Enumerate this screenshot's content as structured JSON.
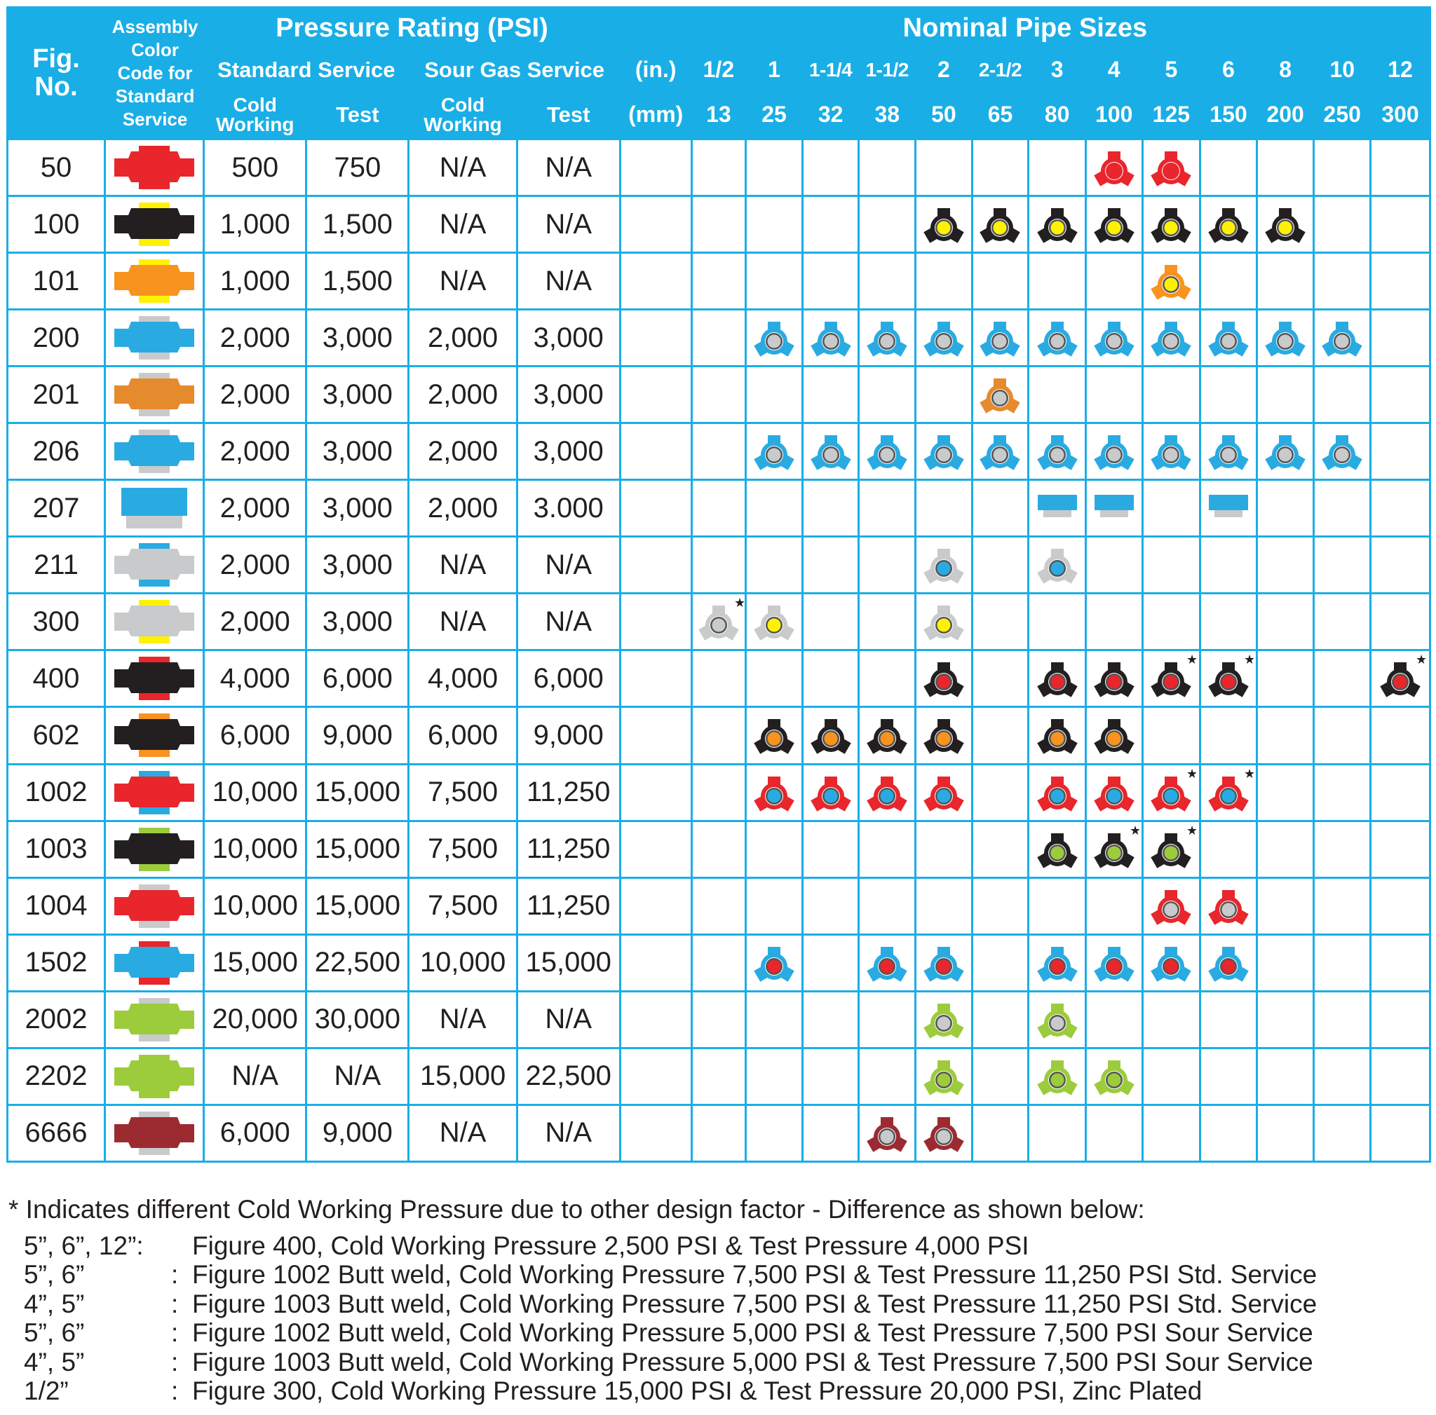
{
  "header": {
    "fig_no": "Fig. No.",
    "assembly": "Assembly Color Code for Standard Service",
    "pressure_rating": "Pressure Rating (PSI)",
    "standard_service": "Standard Service",
    "sour_gas_service": "Sour Gas Service",
    "cold_working": "Cold Working",
    "test": "Test",
    "nominal_pipe_sizes": "Nominal Pipe Sizes",
    "in_label": "(in.)",
    "mm_label": "(mm)",
    "sizes_in": [
      "1/2",
      "1",
      "1-1/4",
      "1-1/2",
      "2",
      "2-1/2",
      "3",
      "4",
      "5",
      "6",
      "8",
      "10",
      "12"
    ],
    "sizes_mm": [
      "13",
      "25",
      "32",
      "38",
      "50",
      "65",
      "80",
      "100",
      "125",
      "150",
      "200",
      "250",
      "300"
    ]
  },
  "colors": {
    "frame": "#1aaee6",
    "red": "#e8262c",
    "yellow": "#fff200",
    "black": "#231f20",
    "orange": "#f7931e",
    "blue": "#29abe2",
    "gray": "#c9cacb",
    "green": "#9ccc3c",
    "maroon": "#9c2b31",
    "amber": "#e68a2e"
  },
  "rows": [
    {
      "fig": "50",
      "std_cold": "500",
      "std_test": "750",
      "sour_cold": "N/A",
      "sour_test": "N/A",
      "swatch": {
        "main": "#e8262c",
        "top": "#e8262c",
        "bot": "#e8262c",
        "shape": "wing"
      },
      "icons": [
        {
          "col": 7,
          "arm": "#e8262c",
          "dot": "#e8262c",
          "hub": "#e8262c",
          "star": false
        },
        {
          "col": 8,
          "arm": "#e8262c",
          "dot": "#e8262c",
          "hub": "#e8262c",
          "star": false
        }
      ]
    },
    {
      "fig": "100",
      "std_cold": "1,000",
      "std_test": "1,500",
      "sour_cold": "N/A",
      "sour_test": "N/A",
      "swatch": {
        "main": "#231f20",
        "top": "#fff200",
        "bot": "#fff200",
        "shape": "wing"
      },
      "icons": [
        {
          "col": 4,
          "arm": "#231f20",
          "dot": "#fff200",
          "star": false
        },
        {
          "col": 5,
          "arm": "#231f20",
          "dot": "#fff200",
          "star": false
        },
        {
          "col": 6,
          "arm": "#231f20",
          "dot": "#fff200",
          "star": false
        },
        {
          "col": 7,
          "arm": "#231f20",
          "dot": "#fff200",
          "star": false
        },
        {
          "col": 8,
          "arm": "#231f20",
          "dot": "#fff200",
          "star": false
        },
        {
          "col": 9,
          "arm": "#231f20",
          "dot": "#fff200",
          "star": false
        },
        {
          "col": 10,
          "arm": "#231f20",
          "dot": "#fff200",
          "star": false
        }
      ]
    },
    {
      "fig": "101",
      "std_cold": "1,000",
      "std_test": "1,500",
      "sour_cold": "N/A",
      "sour_test": "N/A",
      "swatch": {
        "main": "#f7931e",
        "top": "#fff200",
        "bot": "#fff200",
        "shape": "wing"
      },
      "icons": [
        {
          "col": 8,
          "arm": "#f7931e",
          "dot": "#fff200",
          "star": false
        }
      ]
    },
    {
      "fig": "200",
      "std_cold": "2,000",
      "std_test": "3,000",
      "sour_cold": "2,000",
      "sour_test": "3,000",
      "swatch": {
        "main": "#29abe2",
        "top": "#c9cacb",
        "bot": "#c9cacb",
        "shape": "wing"
      },
      "icons": [
        {
          "col": 1,
          "arm": "#29abe2",
          "dot": "#c9cacb",
          "star": false
        },
        {
          "col": 2,
          "arm": "#29abe2",
          "dot": "#c9cacb",
          "star": false
        },
        {
          "col": 3,
          "arm": "#29abe2",
          "dot": "#c9cacb",
          "star": false
        },
        {
          "col": 4,
          "arm": "#29abe2",
          "dot": "#c9cacb",
          "star": false
        },
        {
          "col": 5,
          "arm": "#29abe2",
          "dot": "#c9cacb",
          "star": false
        },
        {
          "col": 6,
          "arm": "#29abe2",
          "dot": "#c9cacb",
          "star": false
        },
        {
          "col": 7,
          "arm": "#29abe2",
          "dot": "#c9cacb",
          "star": false
        },
        {
          "col": 8,
          "arm": "#29abe2",
          "dot": "#c9cacb",
          "star": false
        },
        {
          "col": 9,
          "arm": "#29abe2",
          "dot": "#c9cacb",
          "star": false
        },
        {
          "col": 10,
          "arm": "#29abe2",
          "dot": "#c9cacb",
          "star": false
        },
        {
          "col": 11,
          "arm": "#29abe2",
          "dot": "#c9cacb",
          "star": false
        }
      ]
    },
    {
      "fig": "201",
      "std_cold": "2,000",
      "std_test": "3,000",
      "sour_cold": "2,000",
      "sour_test": "3,000",
      "swatch": {
        "main": "#e68a2e",
        "top": "#c9cacb",
        "bot": "#c9cacb",
        "shape": "wing"
      },
      "icons": [
        {
          "col": 5,
          "arm": "#e68a2e",
          "dot": "#c9cacb",
          "star": false
        }
      ]
    },
    {
      "fig": "206",
      "std_cold": "2,000",
      "std_test": "3,000",
      "sour_cold": "2,000",
      "sour_test": "3,000",
      "swatch": {
        "main": "#29abe2",
        "top": "#c9cacb",
        "bot": "#c9cacb",
        "shape": "wing"
      },
      "icons": [
        {
          "col": 1,
          "arm": "#29abe2",
          "dot": "#c9cacb",
          "star": false
        },
        {
          "col": 2,
          "arm": "#29abe2",
          "dot": "#c9cacb",
          "star": false
        },
        {
          "col": 3,
          "arm": "#29abe2",
          "dot": "#c9cacb",
          "star": false
        },
        {
          "col": 4,
          "arm": "#29abe2",
          "dot": "#c9cacb",
          "star": false
        },
        {
          "col": 5,
          "arm": "#29abe2",
          "dot": "#c9cacb",
          "star": false
        },
        {
          "col": 6,
          "arm": "#29abe2",
          "dot": "#c9cacb",
          "star": false
        },
        {
          "col": 7,
          "arm": "#29abe2",
          "dot": "#c9cacb",
          "star": false
        },
        {
          "col": 8,
          "arm": "#29abe2",
          "dot": "#c9cacb",
          "star": false
        },
        {
          "col": 9,
          "arm": "#29abe2",
          "dot": "#c9cacb",
          "star": false
        },
        {
          "col": 10,
          "arm": "#29abe2",
          "dot": "#c9cacb",
          "star": false
        },
        {
          "col": 11,
          "arm": "#29abe2",
          "dot": "#c9cacb",
          "star": false
        }
      ]
    },
    {
      "fig": "207",
      "std_cold": "2,000",
      "std_test": "3,000",
      "sour_cold": "2,000",
      "sour_test": "3.000",
      "swatch": {
        "main": "#29abe2",
        "top": "#29abe2",
        "bot": "#c9cacb",
        "shape": "block"
      },
      "icons": [
        {
          "col": 6,
          "kind": "block"
        },
        {
          "col": 7,
          "kind": "block"
        },
        {
          "col": 9,
          "kind": "block"
        }
      ]
    },
    {
      "fig": "211",
      "std_cold": "2,000",
      "std_test": "3,000",
      "sour_cold": "N/A",
      "sour_test": "N/A",
      "swatch": {
        "main": "#c9cacb",
        "top": "#29abe2",
        "bot": "#29abe2",
        "shape": "wing"
      },
      "icons": [
        {
          "col": 4,
          "arm": "#c9cacb",
          "dot": "#29abe2",
          "star": false
        },
        {
          "col": 6,
          "arm": "#c9cacb",
          "dot": "#29abe2",
          "star": false
        }
      ]
    },
    {
      "fig": "300",
      "std_cold": "2,000",
      "std_test": "3,000",
      "sour_cold": "N/A",
      "sour_test": "N/A",
      "swatch": {
        "main": "#c9cacb",
        "top": "#fff200",
        "bot": "#fff200",
        "shape": "wing"
      },
      "icons": [
        {
          "col": 0,
          "arm": "#c9cacb",
          "dot": "#c9cacb",
          "star": true
        },
        {
          "col": 1,
          "arm": "#c9cacb",
          "dot": "#fff200",
          "star": false
        },
        {
          "col": 4,
          "arm": "#c9cacb",
          "dot": "#fff200",
          "star": false
        }
      ]
    },
    {
      "fig": "400",
      "std_cold": "4,000",
      "std_test": "6,000",
      "sour_cold": "4,000",
      "sour_test": "6,000",
      "swatch": {
        "main": "#231f20",
        "top": "#e8262c",
        "bot": "#e8262c",
        "shape": "wing"
      },
      "icons": [
        {
          "col": 4,
          "arm": "#231f20",
          "dot": "#e8262c",
          "star": false
        },
        {
          "col": 6,
          "arm": "#231f20",
          "dot": "#e8262c",
          "star": false
        },
        {
          "col": 7,
          "arm": "#231f20",
          "dot": "#e8262c",
          "star": false
        },
        {
          "col": 8,
          "arm": "#231f20",
          "dot": "#e8262c",
          "star": true
        },
        {
          "col": 9,
          "arm": "#231f20",
          "dot": "#e8262c",
          "star": true
        },
        {
          "col": 12,
          "arm": "#231f20",
          "dot": "#e8262c",
          "star": true
        }
      ]
    },
    {
      "fig": "602",
      "std_cold": "6,000",
      "std_test": "9,000",
      "sour_cold": "6,000",
      "sour_test": "9,000",
      "swatch": {
        "main": "#231f20",
        "top": "#f7931e",
        "bot": "#f7931e",
        "shape": "wing"
      },
      "icons": [
        {
          "col": 1,
          "arm": "#231f20",
          "dot": "#f7931e",
          "star": false
        },
        {
          "col": 2,
          "arm": "#231f20",
          "dot": "#f7931e",
          "star": false
        },
        {
          "col": 3,
          "arm": "#231f20",
          "dot": "#f7931e",
          "star": false
        },
        {
          "col": 4,
          "arm": "#231f20",
          "dot": "#f7931e",
          "star": false
        },
        {
          "col": 6,
          "arm": "#231f20",
          "dot": "#f7931e",
          "star": false
        },
        {
          "col": 7,
          "arm": "#231f20",
          "dot": "#f7931e",
          "star": false
        }
      ]
    },
    {
      "fig": "1002",
      "std_cold": "10,000",
      "std_test": "15,000",
      "sour_cold": "7,500",
      "sour_test": "11,250",
      "swatch": {
        "main": "#e8262c",
        "top": "#29abe2",
        "bot": "#29abe2",
        "shape": "wing"
      },
      "icons": [
        {
          "col": 1,
          "arm": "#e8262c",
          "dot": "#29abe2",
          "star": false
        },
        {
          "col": 2,
          "arm": "#e8262c",
          "dot": "#29abe2",
          "star": false
        },
        {
          "col": 3,
          "arm": "#e8262c",
          "dot": "#29abe2",
          "star": false
        },
        {
          "col": 4,
          "arm": "#e8262c",
          "dot": "#29abe2",
          "star": false
        },
        {
          "col": 6,
          "arm": "#e8262c",
          "dot": "#29abe2",
          "star": false
        },
        {
          "col": 7,
          "arm": "#e8262c",
          "dot": "#29abe2",
          "star": false
        },
        {
          "col": 8,
          "arm": "#e8262c",
          "dot": "#29abe2",
          "star": true
        },
        {
          "col": 9,
          "arm": "#e8262c",
          "dot": "#29abe2",
          "star": true
        }
      ]
    },
    {
      "fig": "1003",
      "std_cold": "10,000",
      "std_test": "15,000",
      "sour_cold": "7,500",
      "sour_test": "11,250",
      "swatch": {
        "main": "#231f20",
        "top": "#9ccc3c",
        "bot": "#9ccc3c",
        "shape": "wing"
      },
      "icons": [
        {
          "col": 6,
          "arm": "#231f20",
          "dot": "#9ccc3c",
          "star": false
        },
        {
          "col": 7,
          "arm": "#231f20",
          "dot": "#9ccc3c",
          "star": true
        },
        {
          "col": 8,
          "arm": "#231f20",
          "dot": "#9ccc3c",
          "star": true
        }
      ]
    },
    {
      "fig": "1004",
      "std_cold": "10,000",
      "std_test": "15,000",
      "sour_cold": "7,500",
      "sour_test": "11,250",
      "swatch": {
        "main": "#e8262c",
        "top": "#c9cacb",
        "bot": "#c9cacb",
        "shape": "wing"
      },
      "icons": [
        {
          "col": 8,
          "arm": "#e8262c",
          "dot": "#c9cacb",
          "star": false
        },
        {
          "col": 9,
          "arm": "#e8262c",
          "dot": "#c9cacb",
          "star": false
        }
      ]
    },
    {
      "fig": "1502",
      "std_cold": "15,000",
      "std_test": "22,500",
      "sour_cold": "10,000",
      "sour_test": "15,000",
      "swatch": {
        "main": "#29abe2",
        "top": "#e8262c",
        "bot": "#e8262c",
        "shape": "wing"
      },
      "icons": [
        {
          "col": 1,
          "arm": "#29abe2",
          "dot": "#e8262c",
          "star": false
        },
        {
          "col": 3,
          "arm": "#29abe2",
          "dot": "#e8262c",
          "star": false
        },
        {
          "col": 4,
          "arm": "#29abe2",
          "dot": "#e8262c",
          "star": false
        },
        {
          "col": 6,
          "arm": "#29abe2",
          "dot": "#e8262c",
          "star": false
        },
        {
          "col": 7,
          "arm": "#29abe2",
          "dot": "#e8262c",
          "star": false
        },
        {
          "col": 8,
          "arm": "#29abe2",
          "dot": "#e8262c",
          "star": false
        },
        {
          "col": 9,
          "arm": "#29abe2",
          "dot": "#e8262c",
          "star": false
        }
      ]
    },
    {
      "fig": "2002",
      "std_cold": "20,000",
      "std_test": "30,000",
      "sour_cold": "N/A",
      "sour_test": "N/A",
      "swatch": {
        "main": "#9ccc3c",
        "top": "#c9cacb",
        "bot": "#c9cacb",
        "shape": "wing"
      },
      "icons": [
        {
          "col": 4,
          "arm": "#9ccc3c",
          "dot": "#c9cacb",
          "star": false
        },
        {
          "col": 6,
          "arm": "#9ccc3c",
          "dot": "#c9cacb",
          "star": false
        }
      ]
    },
    {
      "fig": "2202",
      "std_cold": "N/A",
      "std_test": "N/A",
      "sour_cold": "15,000",
      "sour_test": "22,500",
      "swatch": {
        "main": "#9ccc3c",
        "top": "#9ccc3c",
        "bot": "#9ccc3c",
        "shape": "wing"
      },
      "icons": [
        {
          "col": 4,
          "arm": "#9ccc3c",
          "dot": "#9ccc3c",
          "star": false
        },
        {
          "col": 6,
          "arm": "#9ccc3c",
          "dot": "#9ccc3c",
          "star": false
        },
        {
          "col": 7,
          "arm": "#9ccc3c",
          "dot": "#9ccc3c",
          "star": false
        }
      ]
    },
    {
      "fig": "6666",
      "std_cold": "6,000",
      "std_test": "9,000",
      "sour_cold": "N/A",
      "sour_test": "N/A",
      "swatch": {
        "main": "#9c2b31",
        "top": "#c9cacb",
        "bot": "#c9cacb",
        "shape": "wing"
      },
      "icons": [
        {
          "col": 3,
          "arm": "#9c2b31",
          "dot": "#c9cacb",
          "star": false
        },
        {
          "col": 4,
          "arm": "#9c2b31",
          "dot": "#c9cacb",
          "star": false
        }
      ]
    }
  ],
  "notes": {
    "main": "* Indicates different Cold Working Pressure due to other design factor - Difference as shown below:",
    "items": [
      {
        "key": "5”, 6”, 12”:",
        "colon": "",
        "text": "Figure 400, Cold Working Pressure 2,500 PSI & Test Pressure 4,000 PSI"
      },
      {
        "key": "5”, 6”",
        "colon": ":",
        "text": "Figure 1002 Butt weld, Cold Working Pressure 7,500 PSI & Test Pressure 11,250 PSI Std. Service"
      },
      {
        "key": "4”, 5”",
        "colon": ":",
        "text": "Figure 1003 Butt weld, Cold Working Pressure 7,500 PSI & Test Pressure 11,250 PSI Std. Service"
      },
      {
        "key": "5”, 6”",
        "colon": ":",
        "text": "Figure 1002 Butt weld, Cold Working Pressure 5,000 PSI & Test Pressure 7,500 PSI Sour Service"
      },
      {
        "key": "4”, 5”",
        "colon": ":",
        "text": "Figure 1003 Butt weld, Cold Working Pressure 5,000 PSI & Test Pressure 7,500 PSI Sour Service"
      },
      {
        "key": "1/2”",
        "colon": ":",
        "text": "Figure 300, Cold Working Pressure 15,000 PSI & Test Pressure 20,000 PSI, Zinc Plated"
      }
    ]
  }
}
